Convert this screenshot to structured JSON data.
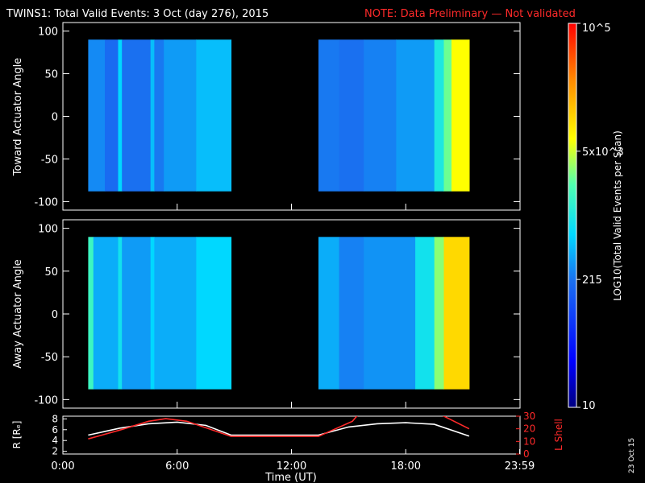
{
  "header": {
    "title": "TWINS1: Total Valid Events:  3 Oct (day 276), 2015",
    "note": "NOTE: Data Preliminary — Not validated"
  },
  "footer": {
    "date_stamp": "23 Oct 15"
  },
  "colors": {
    "background": "#000000",
    "axis": "#ffffff",
    "note": "#ff2a2a",
    "r_line": "#ffffff",
    "lshell_line": "#ff2a2a"
  },
  "chart_data": [
    {
      "type": "heatmap",
      "ylabel": "Toward Actuator Angle",
      "ylim": [
        -110,
        110
      ],
      "yticks": [
        "100",
        "50",
        "0",
        "-50",
        "-100"
      ],
      "ytick_values": [
        100,
        50,
        0,
        -50,
        -100
      ],
      "xlim": [
        0,
        24
      ],
      "data_segments": [
        {
          "x_start": 1.33,
          "x_end": 8.83,
          "y_start": -88,
          "y_end": 90
        },
        {
          "x_start": 13.42,
          "x_end": 21.33,
          "y_start": -88,
          "y_end": 90
        }
      ],
      "bands": [
        {
          "x0": 1.33,
          "x1": 2.2,
          "level": 0.36
        },
        {
          "x0": 2.2,
          "x1": 2.9,
          "level": 0.32
        },
        {
          "x0": 2.9,
          "x1": 3.1,
          "level": 0.45
        },
        {
          "x0": 3.1,
          "x1": 4.6,
          "level": 0.33
        },
        {
          "x0": 4.6,
          "x1": 4.8,
          "level": 0.42
        },
        {
          "x0": 4.8,
          "x1": 5.3,
          "level": 0.34
        },
        {
          "x0": 5.3,
          "x1": 7.0,
          "level": 0.38
        },
        {
          "x0": 7.0,
          "x1": 8.83,
          "level": 0.42
        },
        {
          "x0": 13.42,
          "x1": 14.5,
          "level": 0.34
        },
        {
          "x0": 14.5,
          "x1": 15.8,
          "level": 0.33
        },
        {
          "x0": 15.8,
          "x1": 17.5,
          "level": 0.35
        },
        {
          "x0": 17.5,
          "x1": 19.5,
          "level": 0.38
        },
        {
          "x0": 19.5,
          "x1": 20.0,
          "level": 0.5
        },
        {
          "x0": 20.0,
          "x1": 20.4,
          "level": 0.6
        },
        {
          "x0": 20.4,
          "x1": 21.33,
          "level": 0.7
        }
      ]
    },
    {
      "type": "heatmap",
      "ylabel": "Away Actuator Angle",
      "ylim": [
        -110,
        110
      ],
      "yticks": [
        "100",
        "50",
        "0",
        "-50",
        "-100"
      ],
      "ytick_values": [
        100,
        50,
        0,
        -50,
        -100
      ],
      "xlim": [
        0,
        24
      ],
      "data_segments": [
        {
          "x_start": 1.33,
          "x_end": 8.83,
          "y_start": -88,
          "y_end": 90
        },
        {
          "x_start": 13.42,
          "x_end": 21.33,
          "y_start": -88,
          "y_end": 90
        }
      ],
      "bands": [
        {
          "x0": 1.33,
          "x1": 1.6,
          "level": 0.55
        },
        {
          "x0": 1.6,
          "x1": 2.9,
          "level": 0.4
        },
        {
          "x0": 2.9,
          "x1": 3.1,
          "level": 0.48
        },
        {
          "x0": 3.1,
          "x1": 4.6,
          "level": 0.38
        },
        {
          "x0": 4.6,
          "x1": 4.8,
          "level": 0.45
        },
        {
          "x0": 4.8,
          "x1": 7.0,
          "level": 0.4
        },
        {
          "x0": 7.0,
          "x1": 8.83,
          "level": 0.45
        },
        {
          "x0": 13.42,
          "x1": 14.5,
          "level": 0.4
        },
        {
          "x0": 14.5,
          "x1": 15.8,
          "level": 0.35
        },
        {
          "x0": 15.8,
          "x1": 18.5,
          "level": 0.37
        },
        {
          "x0": 18.5,
          "x1": 19.5,
          "level": 0.48
        },
        {
          "x0": 19.5,
          "x1": 20.0,
          "level": 0.62
        },
        {
          "x0": 20.0,
          "x1": 21.33,
          "level": 0.75
        }
      ]
    },
    {
      "type": "line",
      "ylabel": "R [Rₑ]",
      "y2label": "L Shell",
      "xlabel": "Time (UT)",
      "xlim": [
        0,
        24
      ],
      "xticks": [
        "0:00",
        "6:00",
        "12:00",
        "18:00",
        "23:59"
      ],
      "xtick_values": [
        0,
        6,
        12,
        18,
        23.98
      ],
      "ylim": [
        1.5,
        8.5
      ],
      "yticks": [
        "8",
        "6",
        "4",
        "2"
      ],
      "ytick_values": [
        8,
        6,
        4,
        2
      ],
      "y2lim": [
        0,
        30
      ],
      "y2ticks": [
        "30",
        "20",
        "10",
        "0"
      ],
      "y2tick_values": [
        30,
        20,
        10,
        0
      ],
      "series": [
        {
          "color": "#ffffff",
          "axis": "left",
          "x": [
            1.33,
            3,
            4.5,
            6,
            7.5,
            8.83,
            13.42,
            15,
            16.5,
            18,
            19.5,
            21.33
          ],
          "y": [
            5.0,
            6.3,
            7.1,
            7.4,
            6.8,
            5.0,
            5.0,
            6.5,
            7.1,
            7.3,
            7.0,
            4.8
          ]
        },
        {
          "color": "#ff2a2a",
          "axis": "right",
          "x": [
            1.33,
            3,
            4.5,
            5.4,
            6.5,
            8.83,
            13.42,
            15.2,
            16.0,
            19.2,
            20.0,
            21.33
          ],
          "y": [
            12.0,
            19.0,
            26.0,
            28.0,
            26.0,
            14.0,
            14.0,
            26.0,
            40.0,
            40.0,
            30.0,
            20.0
          ]
        }
      ]
    }
  ],
  "colorbar": {
    "title": "LOG10(Total Valid Events per Scan)",
    "ticks": [
      "10",
      "215",
      "5x10^3",
      "10^5"
    ],
    "tick_levels": [
      0.0,
      0.333,
      0.667,
      1.0
    ],
    "min": "10",
    "max": "10^5"
  }
}
